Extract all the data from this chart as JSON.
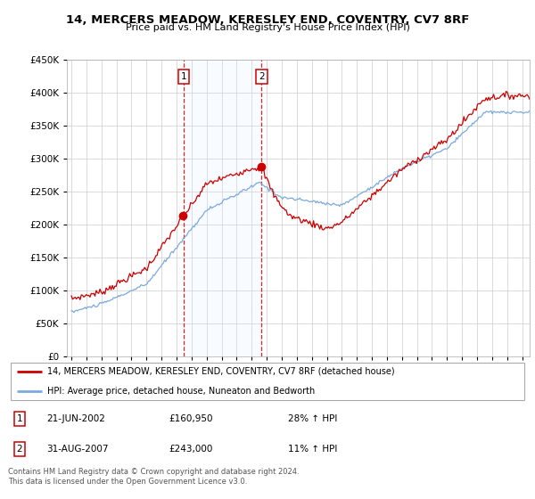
{
  "title": "14, MERCERS MEADOW, KERESLEY END, COVENTRY, CV7 8RF",
  "subtitle": "Price paid vs. HM Land Registry's House Price Index (HPI)",
  "legend_line1": "14, MERCERS MEADOW, KERESLEY END, COVENTRY, CV7 8RF (detached house)",
  "legend_line2": "HPI: Average price, detached house, Nuneaton and Bedworth",
  "footnote": "Contains HM Land Registry data © Crown copyright and database right 2024.\nThis data is licensed under the Open Government Licence v3.0.",
  "transactions": [
    {
      "num": 1,
      "date": "21-JUN-2002",
      "price": 160950,
      "hpi_pct": "28%",
      "hpi_dir": "↑"
    },
    {
      "num": 2,
      "date": "31-AUG-2007",
      "price": 243000,
      "hpi_pct": "11%",
      "hpi_dir": "↑"
    }
  ],
  "transaction_years": [
    2002.47,
    2007.66
  ],
  "transaction_prices": [
    160950,
    243000
  ],
  "color_red": "#cc0000",
  "color_blue": "#7aaadd",
  "color_shade": "#ddeeff",
  "ylim": [
    0,
    450000
  ],
  "xlim_start": 1995,
  "xlim_end": 2025.5
}
